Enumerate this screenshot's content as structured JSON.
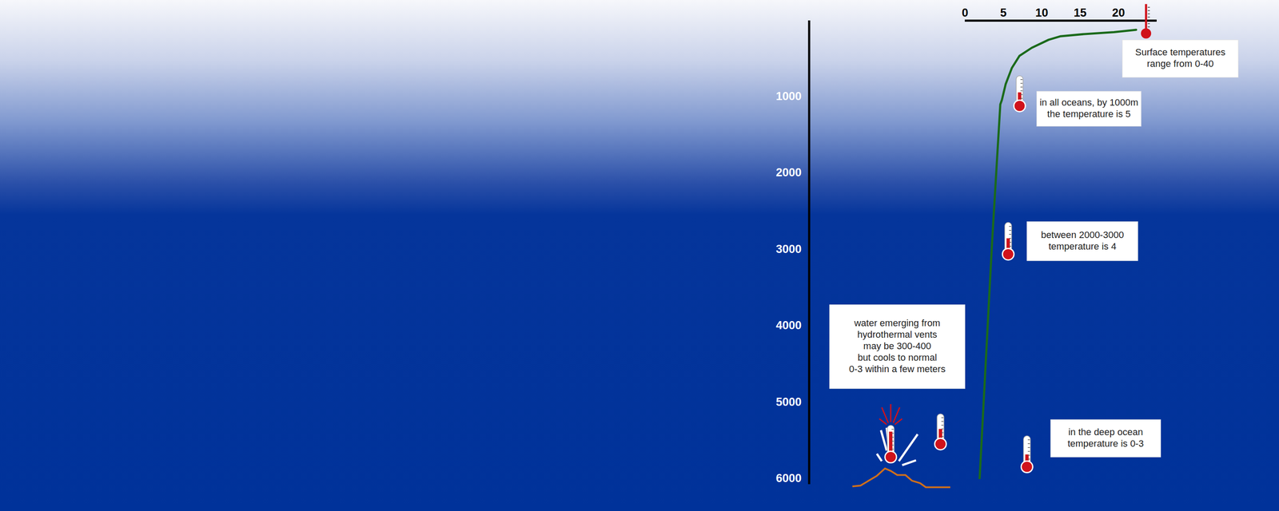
{
  "chart_data": {
    "type": "line",
    "x": [
      22.3,
      19.4,
      15.6,
      12.4,
      10.9,
      8.7,
      7.1,
      6.1,
      5.3,
      4.8,
      4.6,
      3.5,
      1.9
    ],
    "values": [
      120,
      150,
      175,
      205,
      250,
      355,
      460,
      620,
      830,
      1040,
      1095,
      2950,
      6000
    ],
    "color": "#1b6a1b",
    "xlim": [
      0,
      25
    ],
    "xticks": [
      0,
      5,
      10,
      15,
      20
    ],
    "ylim": [
      0,
      6000
    ],
    "yticks": [
      1000,
      2000,
      3000,
      4000,
      5000,
      6000
    ],
    "annotations": [
      "Surface temperatures\nrange from 0-40",
      "in all oceans, by 1000m\nthe temperature is 5",
      "between 2000-3000\ntemperature is 4",
      "water emerging from\nhydrothermal vents\nmay be 300-400\nbut cools to normal\n0-3 within a few meters",
      "in the deep ocean\ntemperature is 0-3"
    ]
  }
}
